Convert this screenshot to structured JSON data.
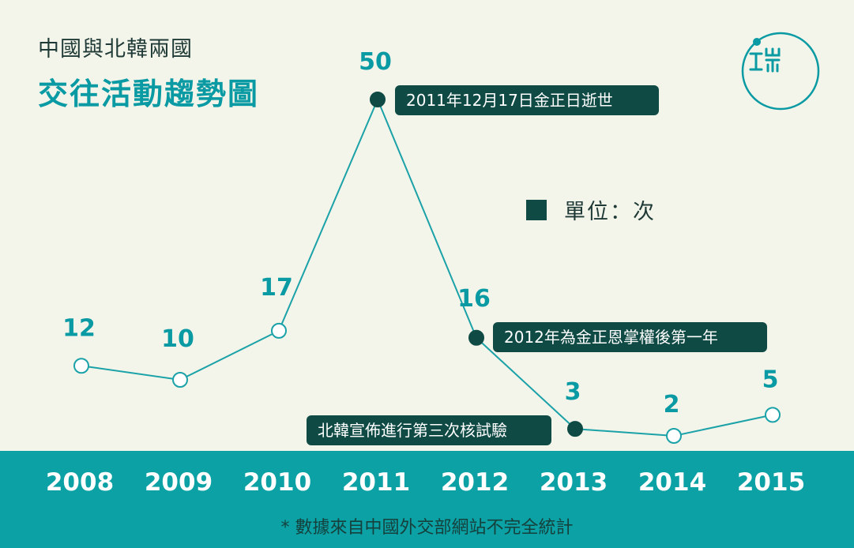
{
  "header": {
    "subtitle": "中國與北韓兩國",
    "title": "交往活動趨勢圖"
  },
  "logo": {
    "text": "端"
  },
  "legend": {
    "label": "單位：次",
    "color": "#0f4a45"
  },
  "footnote": "* 數據來自中國外交部網站不完全統計",
  "chart_data": {
    "type": "line",
    "title": "交往活動趨勢圖",
    "x": [
      "2008",
      "2009",
      "2010",
      "2011",
      "2012",
      "2013",
      "2014",
      "2015"
    ],
    "values": [
      12,
      10,
      17,
      50,
      16,
      3,
      2,
      5
    ],
    "ylim": [
      0,
      50
    ],
    "grid": false,
    "legend_position": "right",
    "line_color": "#1ba2a8",
    "highlighted_points": [
      {
        "x": "2011",
        "label": "2011年12月17日金正日逝世"
      },
      {
        "x": "2012",
        "label": "2012年為金正恩掌權後第一年"
      },
      {
        "x": "2013",
        "label": "北韓宣佈進行第三次核試驗"
      }
    ]
  }
}
